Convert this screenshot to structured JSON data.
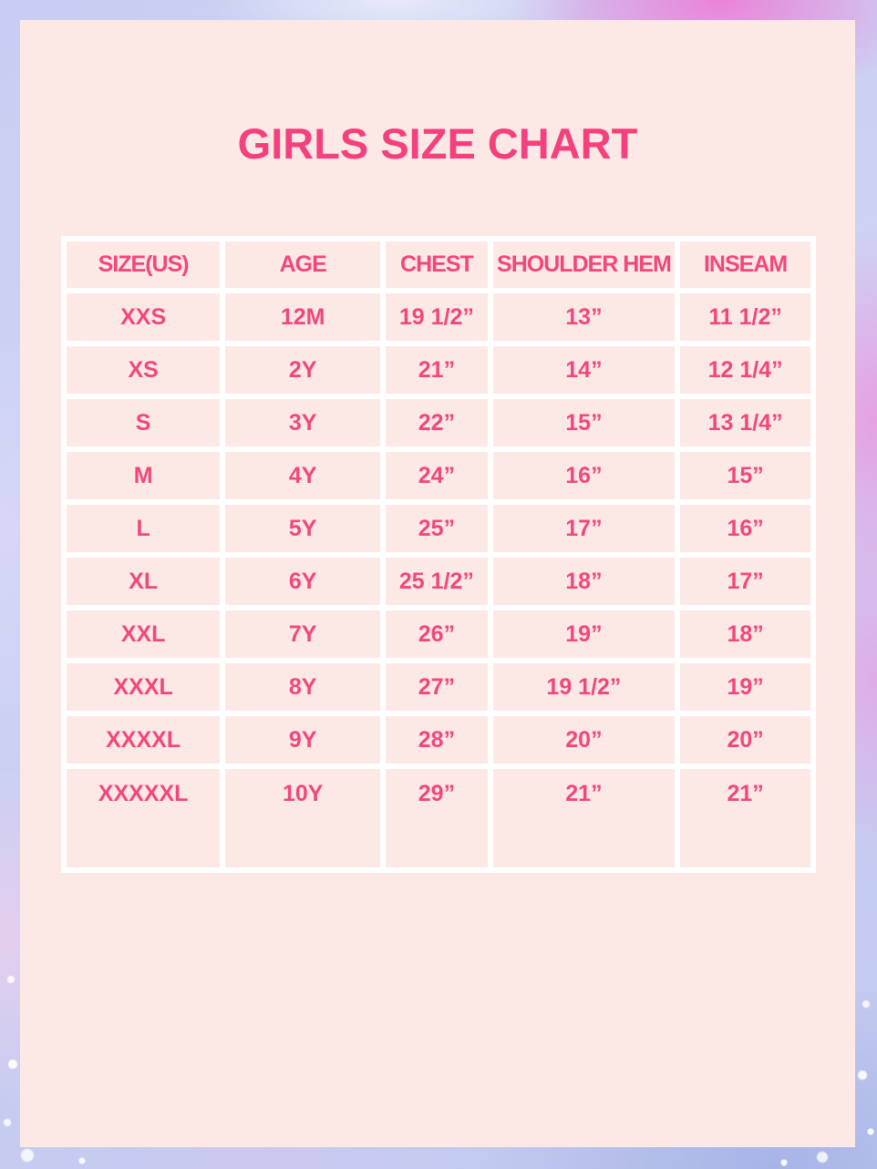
{
  "page": {
    "title": "GIRLS SIZE CHART"
  },
  "colors": {
    "panel_bg": "#fce9e6",
    "grid_lines": "#ffffff",
    "title_pink": "#f4417e",
    "text_pink": "#f2477c",
    "border_lavender": "#c7cdf0",
    "border_magenta": "#ec7ed8"
  },
  "table": {
    "headers": [
      "SIZE(US)",
      "AGE",
      "CHEST",
      "SHOULDER HEM",
      "INSEAM"
    ],
    "rows": [
      [
        "XXS",
        "12M",
        "19 1/2”",
        "13”",
        "11 1/2”"
      ],
      [
        "XS",
        "2Y",
        "21”",
        "14”",
        "12 1/4”"
      ],
      [
        "S",
        "3Y",
        "22”",
        "15”",
        "13 1/4”"
      ],
      [
        "M",
        "4Y",
        "24”",
        "16”",
        "15”"
      ],
      [
        "L",
        "5Y",
        "25”",
        "17”",
        "16”"
      ],
      [
        "XL",
        "6Y",
        "25 1/2”",
        "18”",
        "17”"
      ],
      [
        "XXL",
        "7Y",
        "26”",
        "19”",
        "18”"
      ],
      [
        "XXXL",
        "8Y",
        "27”",
        "19 1/2”",
        "19”"
      ],
      [
        "XXXXL",
        "9Y",
        "28”",
        "20”",
        "20”"
      ],
      [
        "XXXXXL",
        "10Y",
        "29”",
        "21”",
        "21”"
      ]
    ]
  }
}
